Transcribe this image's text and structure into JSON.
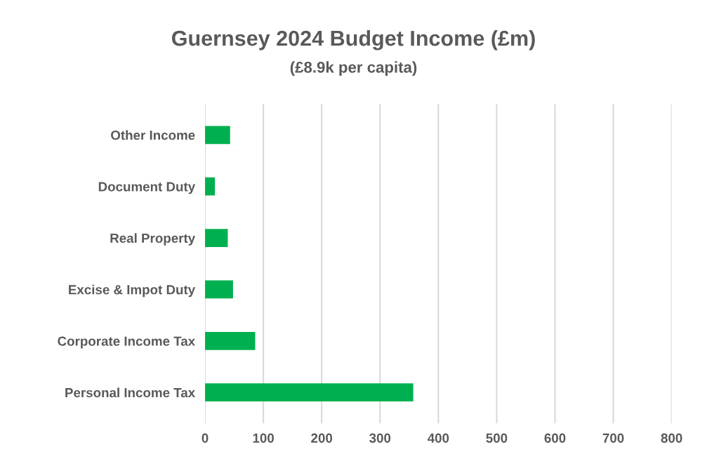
{
  "chart_data": {
    "type": "bar",
    "orientation": "horizontal",
    "title": "Guernsey 2024 Budget Income (£m)",
    "subtitle": "(£8.9k per capita)",
    "categories": [
      "Other Income",
      "Document Duty",
      "Real Property",
      "Excise & Impot Duty",
      "Corporate Income Tax",
      "Personal Income Tax"
    ],
    "values": [
      43,
      17,
      39,
      48,
      86,
      357
    ],
    "color": "#00b050",
    "xlim": [
      0,
      800
    ],
    "xticks": [
      0,
      100,
      200,
      300,
      400,
      500,
      600,
      700,
      800
    ],
    "grid": "x"
  }
}
